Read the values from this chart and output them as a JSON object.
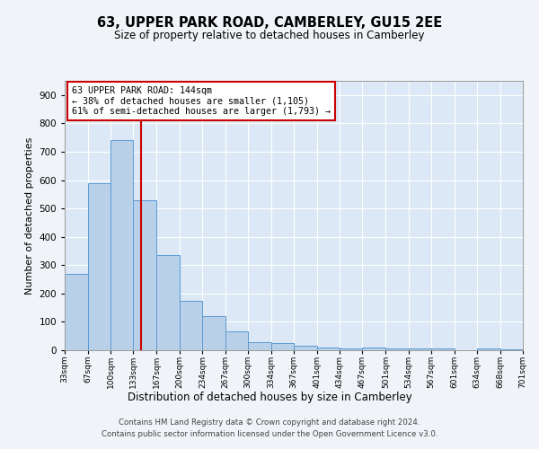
{
  "title": "63, UPPER PARK ROAD, CAMBERLEY, GU15 2EE",
  "subtitle": "Size of property relative to detached houses in Camberley",
  "xlabel": "Distribution of detached houses by size in Camberley",
  "ylabel": "Number of detached properties",
  "bar_color": "#b8d0e8",
  "bar_edge_color": "#5b9bd5",
  "background_color": "#f0f4f8",
  "plot_bg_color": "#dce8f5",
  "grid_color": "#ffffff",
  "annotation_box_color": "#ffffff",
  "annotation_box_edge": "#cc0000",
  "vline_color": "#cc0000",
  "footer_text": "Contains HM Land Registry data © Crown copyright and database right 2024.\nContains public sector information licensed under the Open Government Licence v3.0.",
  "annotation_line1": "63 UPPER PARK ROAD: 144sqm",
  "annotation_line2": "← 38% of detached houses are smaller (1,105)",
  "annotation_line3": "61% of semi-detached houses are larger (1,793) →",
  "property_size_bin": 3,
  "bin_left_edges": [
    33,
    67,
    100,
    133,
    167,
    200,
    234,
    267,
    300,
    334,
    367,
    401,
    434,
    467,
    501,
    534,
    567,
    601,
    634,
    668
  ],
  "bin_width": 33,
  "bin_labels": [
    "33sqm",
    "67sqm",
    "100sqm",
    "133sqm",
    "167sqm",
    "200sqm",
    "234sqm",
    "267sqm",
    "300sqm",
    "334sqm",
    "367sqm",
    "401sqm",
    "434sqm",
    "467sqm",
    "501sqm",
    "534sqm",
    "567sqm",
    "601sqm",
    "634sqm",
    "668sqm",
    "701sqm"
  ],
  "bar_heights": [
    270,
    590,
    740,
    530,
    335,
    175,
    120,
    65,
    30,
    25,
    15,
    10,
    5,
    10,
    5,
    5,
    5,
    0,
    5,
    3
  ],
  "ylim": [
    0,
    950
  ],
  "yticks": [
    0,
    100,
    200,
    300,
    400,
    500,
    600,
    700,
    800,
    900
  ],
  "vline_x": 144
}
